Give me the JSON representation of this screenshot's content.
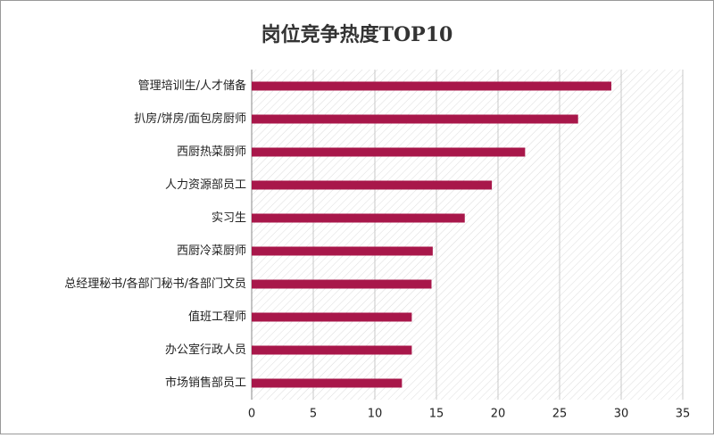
{
  "chart_data": {
    "type": "bar",
    "orientation": "horizontal",
    "title": "岗位竞争热度TOP10",
    "categories": [
      "管理培训生/人才储备",
      "扒房/饼房/面包房厨师",
      "西厨热菜厨师",
      "人力资源部员工",
      "实习生",
      "西厨冷菜厨师",
      "总经理秘书/各部门秘书/各部门文员",
      "值班工程师",
      "办公室行政人员",
      "市场销售部员工"
    ],
    "values": [
      29.2,
      26.5,
      22.2,
      19.5,
      17.3,
      14.7,
      14.6,
      13.0,
      13.0,
      12.2
    ],
    "color": "#a8174a",
    "xlim": [
      0,
      35
    ],
    "xticks": [
      0,
      5,
      10,
      15,
      20,
      25,
      30,
      35
    ],
    "grid": true
  }
}
